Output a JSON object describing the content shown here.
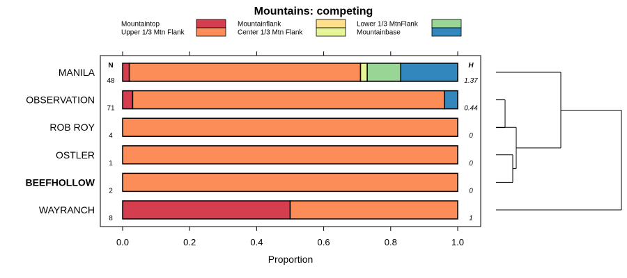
{
  "chart_data": {
    "type": "bar",
    "stacked": true,
    "orientation": "horizontal",
    "title": "Mountains: competing",
    "xlabel": "Proportion",
    "xlim": [
      0,
      1
    ],
    "xticks": [
      "0.0",
      "0.2",
      "0.4",
      "0.6",
      "0.8",
      "1.0"
    ],
    "n_header": "N",
    "h_header": "H",
    "legend": [
      {
        "name": "Mountaintop",
        "color": "#d53e4f"
      },
      {
        "name": "Upper 1/3 Mtn Flank",
        "color": "#fc8d59"
      },
      {
        "name": "Mountainflank",
        "color": "#fee08b"
      },
      {
        "name": "Center 1/3 Mtn Flank",
        "color": "#e6f598"
      },
      {
        "name": "Lower 1/3 MtnFlank",
        "color": "#99d594"
      },
      {
        "name": "Mountainbase",
        "color": "#3288bd"
      }
    ],
    "categories": [
      "MANILA",
      "OBSERVATION",
      "ROB ROY",
      "OSTLER",
      "BEEFHOLLOW",
      "WAYRANCH"
    ],
    "bold_categories": [
      "BEEFHOLLOW"
    ],
    "n": [
      "48",
      "71",
      "4",
      "1",
      "2",
      "8"
    ],
    "h": [
      "1.37",
      "0.44",
      "0",
      "0",
      "0",
      "1"
    ],
    "series": [
      {
        "name": "Mountaintop",
        "values": [
          0.02,
          0.03,
          0,
          0,
          0,
          0.5
        ]
      },
      {
        "name": "Upper 1/3 Mtn Flank",
        "values": [
          0.69,
          0.93,
          1,
          1,
          1,
          0.5
        ]
      },
      {
        "name": "Mountainflank",
        "values": [
          0,
          0,
          0,
          0,
          0,
          0
        ]
      },
      {
        "name": "Center 1/3 Mtn Flank",
        "values": [
          0.02,
          0,
          0,
          0,
          0,
          0
        ]
      },
      {
        "name": "Lower 1/3 MtnFlank",
        "values": [
          0.1,
          0,
          0,
          0,
          0,
          0
        ]
      },
      {
        "name": "Mountainbase",
        "values": [
          0.17,
          0.04,
          0,
          0,
          0,
          0
        ]
      }
    ],
    "dendrogram": true
  }
}
